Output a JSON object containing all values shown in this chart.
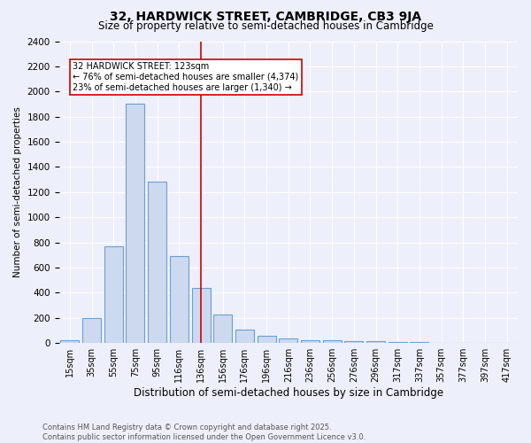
{
  "title": "32, HARDWICK STREET, CAMBRIDGE, CB3 9JA",
  "subtitle": "Size of property relative to semi-detached houses in Cambridge",
  "xlabel": "Distribution of semi-detached houses by size in Cambridge",
  "ylabel": "Number of semi-detached properties",
  "bar_labels": [
    "15sqm",
    "35sqm",
    "55sqm",
    "75sqm",
    "95sqm",
    "116sqm",
    "136sqm",
    "156sqm",
    "176sqm",
    "196sqm",
    "216sqm",
    "236sqm",
    "256sqm",
    "276sqm",
    "296sqm",
    "317sqm",
    "337sqm",
    "357sqm",
    "377sqm",
    "397sqm",
    "417sqm"
  ],
  "bar_heights": [
    25,
    200,
    770,
    1900,
    1280,
    690,
    435,
    230,
    105,
    60,
    35,
    25,
    20,
    15,
    15,
    10,
    5,
    3,
    2,
    1,
    0
  ],
  "bar_color": "#cdd9ef",
  "bar_edge_color": "#6b9fd4",
  "vline_x": 6.0,
  "vline_color": "#cc0000",
  "annotation_text": "32 HARDWICK STREET: 123sqm\n← 76% of semi-detached houses are smaller (4,374)\n23% of semi-detached houses are larger (1,340) →",
  "annotation_box_color": "#cc0000",
  "ylim": [
    0,
    2400
  ],
  "yticks": [
    0,
    200,
    400,
    600,
    800,
    1000,
    1200,
    1400,
    1600,
    1800,
    2000,
    2200,
    2400
  ],
  "background_color": "#edf0fb",
  "grid_color": "#ffffff",
  "footer": "Contains HM Land Registry data © Crown copyright and database right 2025.\nContains public sector information licensed under the Open Government Licence v3.0.",
  "title_fontsize": 10,
  "subtitle_fontsize": 8.5
}
